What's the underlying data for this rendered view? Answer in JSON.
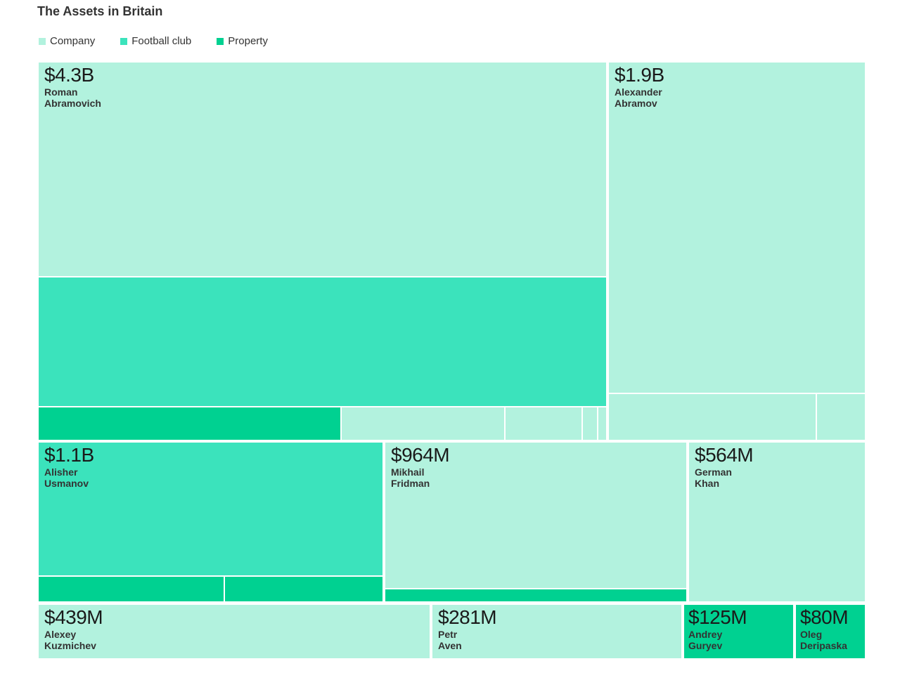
{
  "title": "The Assets in Britain",
  "colors": {
    "company": "#b2f2de",
    "football": "#3be3bc",
    "property": "#00d191",
    "gap": "#ffffff"
  },
  "legend": [
    {
      "label": "Company",
      "color": "#b2f2de"
    },
    {
      "label": "Football club",
      "color": "#3be3bc"
    },
    {
      "label": "Property",
      "color": "#00d191"
    }
  ],
  "chart_data": {
    "type": "treemap",
    "title": "The Assets in Britain",
    "categories": [
      "Company",
      "Football club",
      "Property"
    ],
    "groups": [
      {
        "name": "Roman Abramovich",
        "first": "Roman",
        "last": "Abramovich",
        "label": "$4.3B",
        "value_usd_m": 4300
      },
      {
        "name": "Alexander Abramov",
        "first": "Alexander",
        "last": "Abramov",
        "label": "$1.9B",
        "value_usd_m": 1900
      },
      {
        "name": "Alisher Usmanov",
        "first": "Alisher",
        "last": "Usmanov",
        "label": "$1.1B",
        "value_usd_m": 1100
      },
      {
        "name": "Mikhail Fridman",
        "first": "Mikhail",
        "last": "Fridman",
        "label": "$964M",
        "value_usd_m": 964
      },
      {
        "name": "German Khan",
        "first": "German",
        "last": "Khan",
        "label": "$564M",
        "value_usd_m": 564
      },
      {
        "name": "Alexey Kuzmichev",
        "first": "Alexey",
        "last": "Kuzmichev",
        "label": "$439M",
        "value_usd_m": 439
      },
      {
        "name": "Petr Aven",
        "first": "Petr",
        "last": "Aven",
        "label": "$281M",
        "value_usd_m": 281
      },
      {
        "name": "Andrey Guryev",
        "first": "Andrey",
        "last": "Guryev",
        "label": "$125M",
        "value_usd_m": 125
      },
      {
        "name": "Oleg Deripaska",
        "first": "Oleg",
        "last": "Deripaska",
        "label": "$80M",
        "value_usd_m": 80
      }
    ]
  }
}
